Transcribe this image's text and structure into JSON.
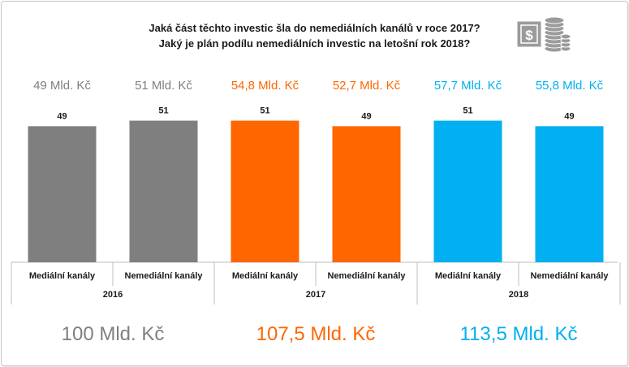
{
  "title_lines": [
    "Jaká část těchto investic šla do nemediálních kanálů v roce 2017?",
    "Jaký je plán podílu nemediálních investic na letošní rok 2018?"
  ],
  "icon": "money-coins-icon",
  "colors": {
    "2016": "#7f7f7f",
    "2017": "#ff6600",
    "2018": "#00b0f0"
  },
  "chart_data": {
    "type": "bar",
    "title": "",
    "xlabel": "",
    "ylabel": "",
    "grid": false,
    "categories": [
      "Mediální kanály",
      "Nemediální kanály",
      "Mediální kanály",
      "Nemediální kanály",
      "Mediální kanály",
      "Nemediální kanály"
    ],
    "groups": [
      {
        "year": "2016",
        "total": "100 Mld. Kč",
        "color_key": "2016"
      },
      {
        "year": "2017",
        "total": "107,5 Mld. Kč",
        "color_key": "2017"
      },
      {
        "year": "2018",
        "total": "113,5 Mld. Kč",
        "color_key": "2018"
      }
    ],
    "values": [
      49,
      51,
      51,
      49,
      51,
      49
    ],
    "group_index": [
      0,
      0,
      1,
      1,
      2,
      2
    ],
    "amount_labels": [
      "49 Mld. Kč",
      "51 Mld. Kč",
      "54,8 Mld. Kč",
      "52,7 Mld. Kč",
      "57,7 Mld. Kč",
      "55,8 Mld. Kč"
    ]
  }
}
